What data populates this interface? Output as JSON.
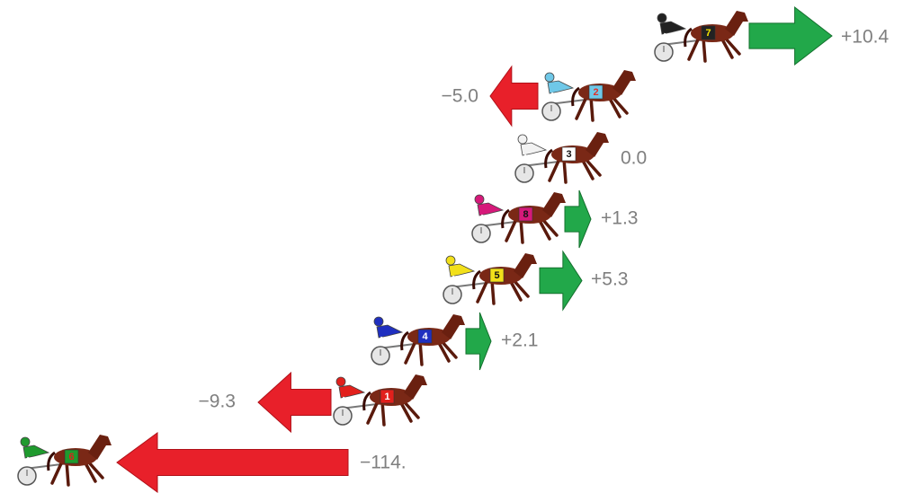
{
  "horses": [
    {
      "number": "7",
      "label": "+10.4",
      "color": "#222222",
      "text_color": "#f5e400"
    },
    {
      "number": "2",
      "label": "−5.0",
      "color": "#6fc8e8",
      "text_color": "#e0302a"
    },
    {
      "number": "3",
      "label": "0.0",
      "color": "#f2f2f2",
      "text_color": "#111111"
    },
    {
      "number": "8",
      "label": "+1.3",
      "color": "#d6197a",
      "text_color": "#111111"
    },
    {
      "number": "5",
      "label": "+5.3",
      "color": "#f2e01a",
      "text_color": "#111111"
    },
    {
      "number": "4",
      "label": "+2.1",
      "color": "#1f2fc0",
      "text_color": "#ffffff"
    },
    {
      "number": "1",
      "label": "−9.3",
      "color": "#e2201c",
      "text_color": "#ffffff"
    },
    {
      "number": "6",
      "label": "−114.",
      "color": "#1f9a2e",
      "text_color": "#e2201c"
    }
  ]
}
